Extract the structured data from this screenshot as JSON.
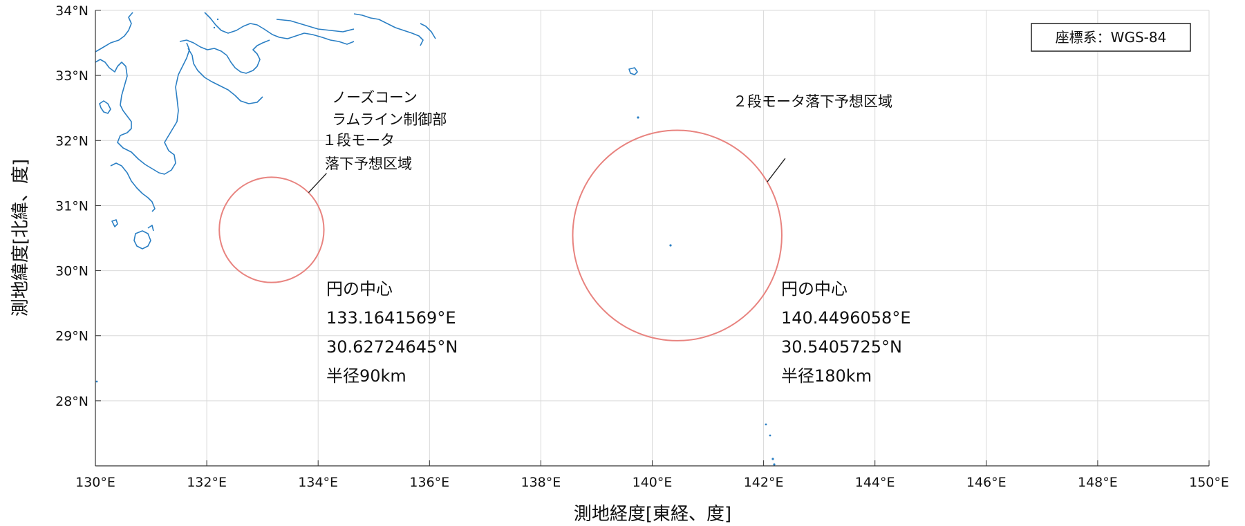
{
  "chart_data": {
    "type": "map",
    "xlim": [
      130,
      150
    ],
    "ylim": [
      27,
      34
    ],
    "x_ticks": [
      {
        "value": 130,
        "label": "130°E"
      },
      {
        "value": 132,
        "label": "132°E"
      },
      {
        "value": 134,
        "label": "134°E"
      },
      {
        "value": 136,
        "label": "136°E"
      },
      {
        "value": 138,
        "label": "138°E"
      },
      {
        "value": 140,
        "label": "140°E"
      },
      {
        "value": 142,
        "label": "142°E"
      },
      {
        "value": 144,
        "label": "144°E"
      },
      {
        "value": 146,
        "label": "146°E"
      },
      {
        "value": 148,
        "label": "148°E"
      },
      {
        "value": 150,
        "label": "150°E"
      }
    ],
    "y_ticks": [
      {
        "value": 34,
        "label": "34°N"
      },
      {
        "value": 33,
        "label": "33°N"
      },
      {
        "value": 32,
        "label": "32°N"
      },
      {
        "value": 31,
        "label": "31°N"
      },
      {
        "value": 30,
        "label": "30°N"
      },
      {
        "value": 29,
        "label": "29°N"
      },
      {
        "value": 28,
        "label": "28°N"
      }
    ],
    "grid": true,
    "xlabel": "測地経度[東経、度]",
    "ylabel": "測地緯度[北緯、度]",
    "legend_box": "座標系：WGS-84",
    "areas": [
      {
        "name": "ノーズコーン ラムライン制御部 1段モータ 落下予想区域",
        "label_lines": [
          "ノーズコーン",
          "ラムライン制御部",
          "１段モータ",
          "落下予想区域"
        ],
        "center_lon": 133.1641569,
        "center_lat": 30.62724645,
        "radius_km": 90,
        "info_lines": [
          "円の中心",
          "133.1641569°E",
          "30.62724645°N",
          "半径90km"
        ]
      },
      {
        "name": "2段モータ落下予想区域",
        "label_lines": [
          "２段モータ落下予想区域"
        ],
        "center_lon": 140.4496058,
        "center_lat": 30.5405725,
        "radius_km": 180,
        "info_lines": [
          "円の中心",
          "140.4496058°E",
          "30.5405725°N",
          "半径180km"
        ]
      }
    ]
  },
  "colors": {
    "circle": "#e8837f",
    "coastline": "#2a7fc4",
    "grid": "#d9d9d9",
    "axis": "#333333"
  }
}
